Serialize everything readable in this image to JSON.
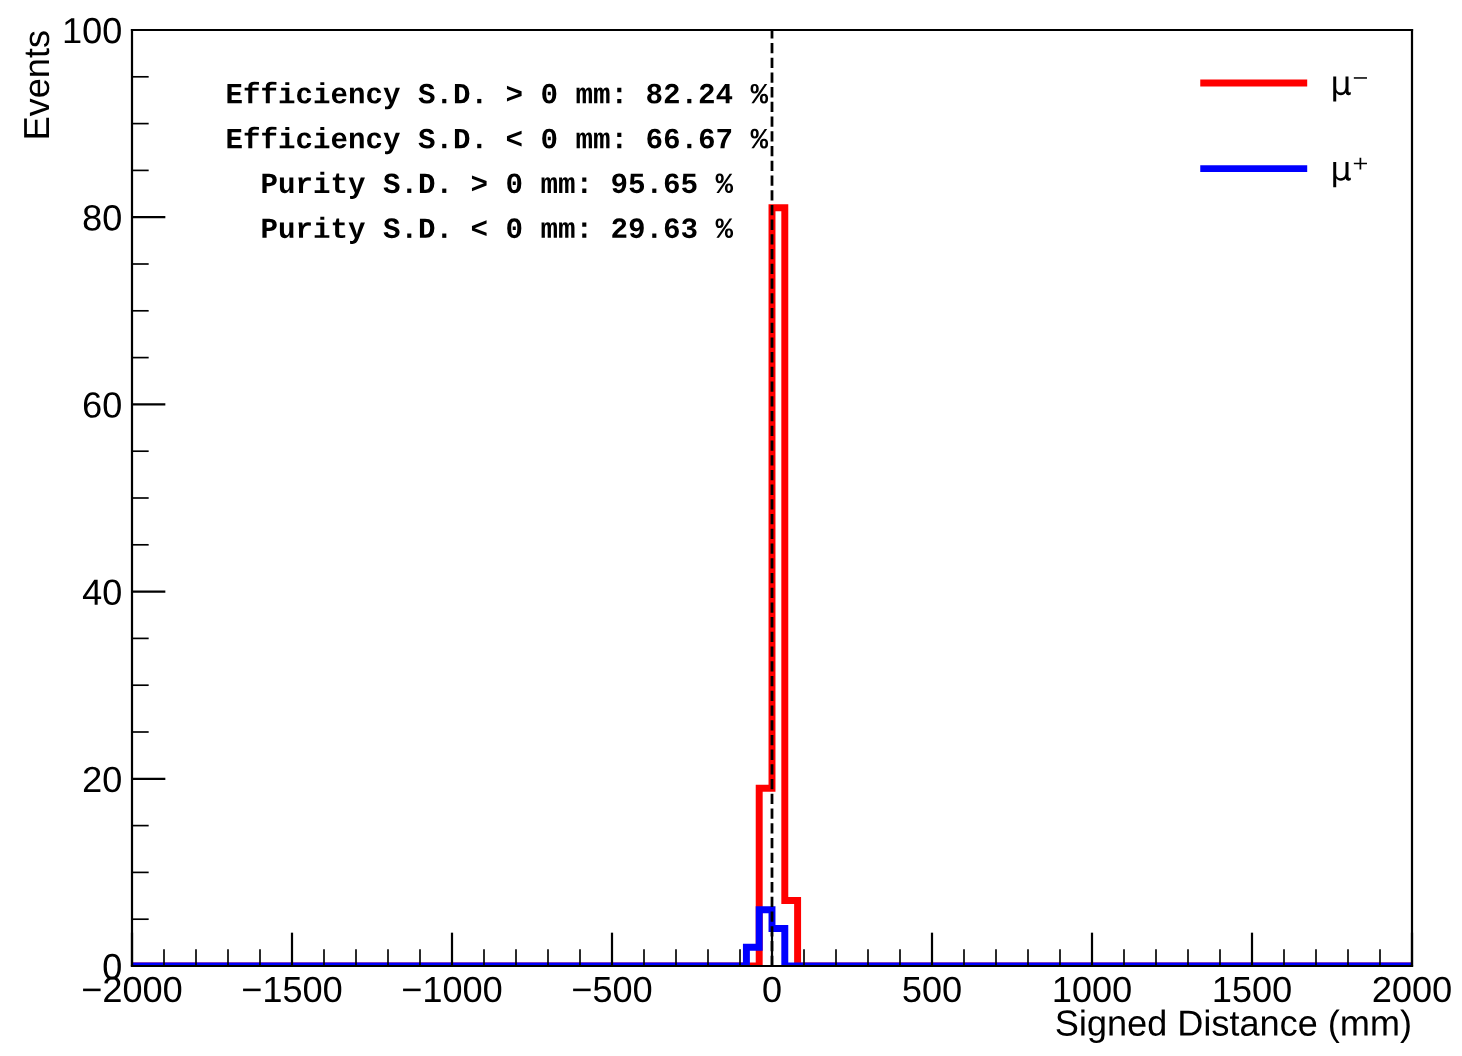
{
  "chart_data": {
    "type": "histogram",
    "xlabel": "Signed Distance (mm)",
    "ylabel": "Events",
    "bins": [
      -2000,
      -80,
      -40,
      0,
      40,
      80,
      2000
    ],
    "series": [
      {
        "name": "μ⁻",
        "color": "#ff0000",
        "values": [
          0,
          0,
          19,
          81,
          7,
          0
        ]
      },
      {
        "name": "μ⁺",
        "color": "#0000ff",
        "values": [
          0,
          2,
          6,
          4,
          0,
          0
        ]
      }
    ],
    "xlim": [
      -2000,
      2000
    ],
    "ylim": [
      0,
      100
    ],
    "xticks": [
      {
        "value": -2000,
        "label": "−2000"
      },
      {
        "value": -1500,
        "label": "−1500"
      },
      {
        "value": -1000,
        "label": "−1000"
      },
      {
        "value": -500,
        "label": "−500"
      },
      0,
      500,
      1000,
      1500,
      2000
    ],
    "yticks": [
      0,
      20,
      40,
      60,
      80,
      100
    ],
    "ref_lines": [
      {
        "axis": "x",
        "value": 0,
        "color": "#000000",
        "line_style": "dashed"
      }
    ],
    "annotations": [
      "Efficiency S.D. > 0 mm: 82.24 %",
      "Efficiency S.D. < 0 mm: 66.67 %",
      "Purity S.D. > 0 mm: 95.65 %",
      "Purity S.D. < 0 mm: 29.63 %"
    ],
    "legend": "top right",
    "grid": false
  }
}
